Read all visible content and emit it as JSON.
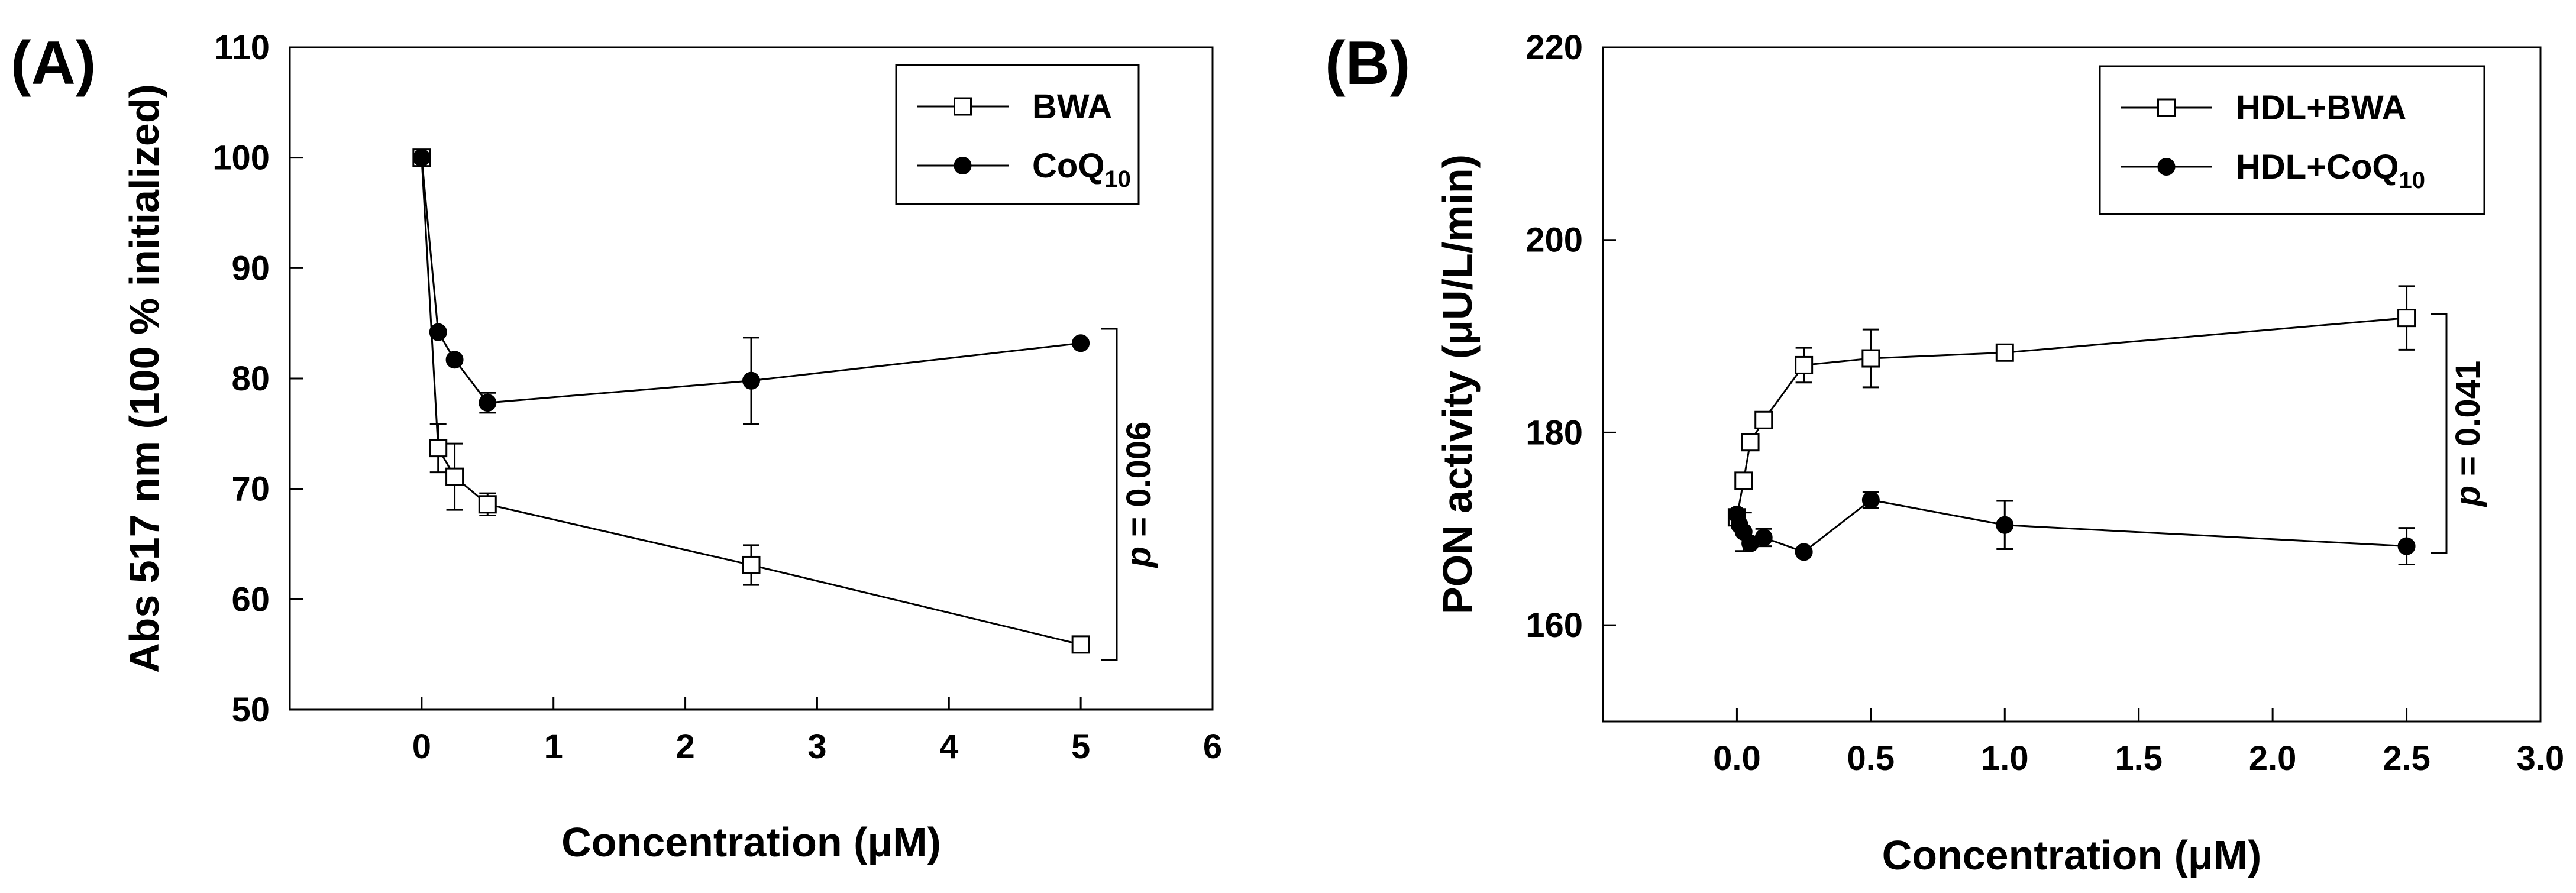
{
  "chart_data": [
    {
      "type": "line",
      "panel": "(A)",
      "xlabel": "Concentration (μM)",
      "ylabel": "Abs 517 nm (100 % initialized)",
      "xlim": [
        -1,
        6
      ],
      "ylim": [
        50,
        110
      ],
      "xticks": [
        0,
        1,
        2,
        3,
        4,
        5,
        6
      ],
      "yticks": [
        50,
        60,
        70,
        80,
        90,
        100,
        110
      ],
      "legend_position": "top-right",
      "grid": false,
      "series": [
        {
          "name": "BWA",
          "marker": "open-square",
          "x": [
            0,
            0.125,
            0.25,
            0.5,
            2.5,
            5
          ],
          "y": [
            100,
            73.7,
            71.1,
            68.6,
            63.1,
            55.9
          ],
          "err": [
            0,
            2.2,
            3.0,
            1.0,
            1.8,
            0.4
          ]
        },
        {
          "name": "CoQ10",
          "marker": "filled-circle",
          "x": [
            0,
            0.125,
            0.25,
            0.5,
            2.5,
            5
          ],
          "y": [
            100,
            84.2,
            81.7,
            77.8,
            79.8,
            83.2
          ],
          "err": [
            0,
            0,
            0,
            0.9,
            3.9,
            0
          ]
        }
      ],
      "annotation": {
        "text_p": "p",
        "text_rest": " = 0.006"
      }
    },
    {
      "type": "line",
      "panel": "(B)",
      "xlabel": "Concentration (μM)",
      "ylabel": "PON activity (μU/L/min)",
      "xlim": [
        -0.5,
        3.0
      ],
      "ylim": [
        150,
        220
      ],
      "xticks": [
        0.0,
        0.5,
        1.0,
        1.5,
        2.0,
        2.5,
        3.0
      ],
      "xtick_labels": [
        "0.0",
        "0.5",
        "1.0",
        "1.5",
        "2.0",
        "2.5",
        "3.0"
      ],
      "yticks": [
        160,
        180,
        200,
        220
      ],
      "legend_position": "top-right",
      "grid": false,
      "series": [
        {
          "name": "HDL+BWA",
          "marker": "open-square",
          "x": [
            0,
            0.025,
            0.05,
            0.1,
            0.25,
            0.5,
            1.0,
            2.5
          ],
          "y": [
            171.2,
            175.0,
            179.0,
            181.3,
            187.0,
            187.7,
            188.3,
            191.9
          ],
          "err": [
            0,
            0,
            0,
            0,
            1.8,
            3.0,
            0,
            3.3
          ]
        },
        {
          "name": "HDL+CoQ10",
          "marker": "filled-circle",
          "x": [
            0,
            0.01,
            0.025,
            0.05,
            0.1,
            0.25,
            0.5,
            1.0,
            2.5
          ],
          "y": [
            171.5,
            170.4,
            169.7,
            168.5,
            169.1,
            167.6,
            173.0,
            170.4,
            168.2
          ],
          "err": [
            0,
            0,
            2.0,
            0,
            0.9,
            0,
            0.8,
            2.5,
            1.9
          ]
        }
      ],
      "annotation": {
        "text_p": "p",
        "text_rest": " = 0.041"
      }
    }
  ]
}
